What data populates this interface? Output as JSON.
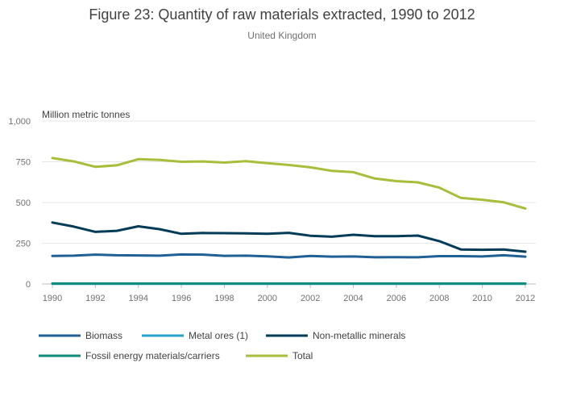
{
  "chart_data": {
    "type": "line",
    "title": "Figure 23: Quantity of raw materials extracted, 1990 to 2012",
    "subtitle": "United Kingdom",
    "ylabel": "Million metric tonnes",
    "xlabel": "",
    "x": [
      1990,
      1991,
      1992,
      1993,
      1994,
      1995,
      1996,
      1997,
      1998,
      1999,
      2000,
      2001,
      2002,
      2003,
      2004,
      2005,
      2006,
      2007,
      2008,
      2009,
      2010,
      2011,
      2012
    ],
    "xticks": [
      "1990",
      "1992",
      "1994",
      "1996",
      "1998",
      "2000",
      "2002",
      "2004",
      "2006",
      "2008",
      "2010",
      "2012"
    ],
    "xlim": [
      1990,
      2012
    ],
    "ylim": [
      0,
      1000
    ],
    "yticks": [
      0,
      250,
      500,
      750,
      1000
    ],
    "ytick_labels": [
      "0",
      "250",
      "500",
      "750",
      "1,000"
    ],
    "grid": true,
    "legend_position": "bottom",
    "series": [
      {
        "name": "Biomass",
        "color": "#206095",
        "values": [
          172,
          174,
          180,
          176,
          175,
          174,
          181,
          180,
          173,
          174,
          170,
          163,
          172,
          168,
          169,
          164,
          165,
          164,
          171,
          171,
          169,
          176,
          168
        ]
      },
      {
        "name": "Metal ores (1)",
        "color": "#27A0CC",
        "values": [
          1,
          1,
          1,
          1,
          1,
          1,
          1,
          1,
          1,
          1,
          1,
          1,
          1,
          1,
          1,
          1,
          1,
          1,
          1,
          1,
          1,
          1,
          1
        ]
      },
      {
        "name": "Non-metallic minerals",
        "color": "#003C57",
        "values": [
          377,
          352,
          320,
          326,
          354,
          336,
          308,
          313,
          312,
          311,
          308,
          314,
          296,
          290,
          302,
          293,
          293,
          297,
          263,
          212,
          210,
          212,
          198
        ]
      },
      {
        "name": "Fossil energy materials/carriers",
        "color": "#118C7B",
        "values": [
          3,
          3,
          3,
          3,
          3,
          3,
          3,
          3,
          3,
          3,
          3,
          3,
          3,
          3,
          3,
          3,
          3,
          3,
          3,
          3,
          3,
          3,
          3
        ]
      },
      {
        "name": "Total",
        "color": "#A8BD3A",
        "values": [
          773,
          752,
          719,
          728,
          766,
          761,
          750,
          752,
          745,
          754,
          741,
          730,
          716,
          694,
          686,
          647,
          631,
          624,
          591,
          528,
          517,
          501,
          463
        ]
      }
    ]
  }
}
